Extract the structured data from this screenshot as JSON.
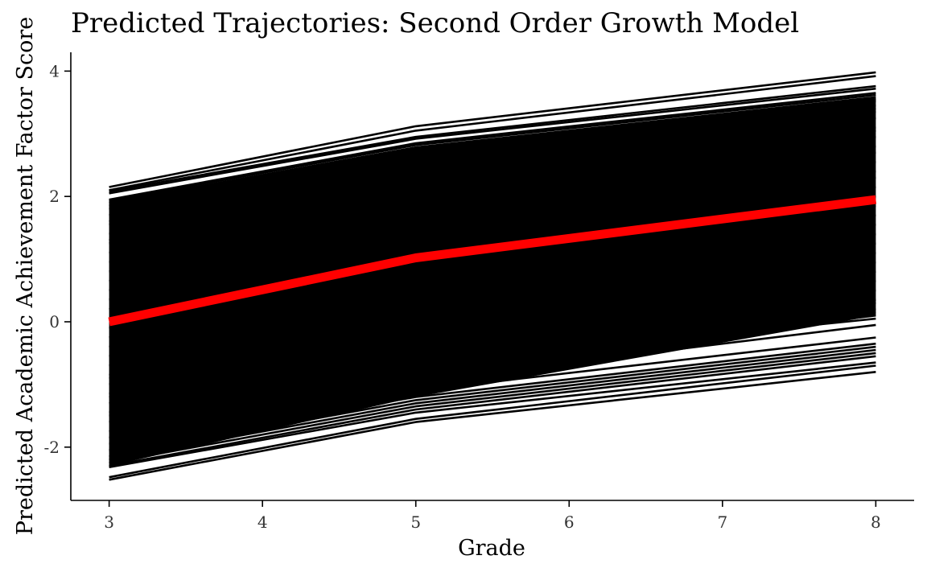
{
  "chart_data": {
    "type": "line",
    "title": "Predicted Trajectories: Second Order Growth Model",
    "xlabel": "Grade",
    "ylabel": "Predicted Academic Achievement Factor Score",
    "xlim": [
      2.75,
      8.25
    ],
    "ylim": [
      -2.85,
      4.3
    ],
    "x_ticks": [
      3,
      4,
      5,
      6,
      7,
      8
    ],
    "y_ticks": [
      -2,
      0,
      2,
      4
    ],
    "x_tick_labels": [
      "3",
      "4",
      "5",
      "6",
      "7",
      "8"
    ],
    "y_tick_labels": [
      "-2",
      "0",
      "2",
      "4"
    ],
    "x": [
      3,
      5,
      8
    ],
    "individual_trajectories_note_color": "#000000",
    "series": [
      {
        "values": [
          2.15,
          3.12,
          3.98
        ]
      },
      {
        "values": [
          2.1,
          3.05,
          3.92
        ]
      },
      {
        "values": [
          2.08,
          2.95,
          3.76
        ]
      },
      {
        "values": [
          2.05,
          2.92,
          3.72
        ]
      },
      {
        "values": [
          1.95,
          2.85,
          3.65
        ]
      },
      {
        "values": [
          1.93,
          2.82,
          3.62
        ]
      },
      {
        "values": [
          1.9,
          2.78,
          3.55
        ]
      },
      {
        "values": [
          1.85,
          2.75,
          3.52
        ]
      },
      {
        "values": [
          1.7,
          2.6,
          3.4
        ]
      },
      {
        "values": [
          1.55,
          2.45,
          3.25
        ]
      },
      {
        "values": [
          1.4,
          2.3,
          3.1
        ]
      },
      {
        "values": [
          1.25,
          2.15,
          2.95
        ]
      },
      {
        "values": [
          1.1,
          2.0,
          2.8
        ]
      },
      {
        "values": [
          0.95,
          1.85,
          2.7
        ]
      },
      {
        "values": [
          0.8,
          1.7,
          2.55
        ]
      },
      {
        "values": [
          0.65,
          1.55,
          2.4
        ]
      },
      {
        "values": [
          0.5,
          1.45,
          2.3
        ]
      },
      {
        "values": [
          0.35,
          1.3,
          2.15
        ]
      },
      {
        "values": [
          0.2,
          1.15,
          2.0
        ]
      },
      {
        "values": [
          0.05,
          1.0,
          1.85
        ]
      },
      {
        "values": [
          -0.1,
          0.85,
          1.7
        ]
      },
      {
        "values": [
          -0.25,
          0.7,
          1.55
        ]
      },
      {
        "values": [
          -0.4,
          0.55,
          1.4
        ]
      },
      {
        "values": [
          -0.55,
          0.4,
          1.25
        ]
      },
      {
        "values": [
          -0.7,
          0.25,
          1.1
        ]
      },
      {
        "values": [
          -0.85,
          0.1,
          0.95
        ]
      },
      {
        "values": [
          -1.0,
          -0.05,
          0.8
        ]
      },
      {
        "values": [
          -1.15,
          -0.2,
          0.65
        ]
      },
      {
        "values": [
          -1.3,
          -0.35,
          0.5
        ]
      },
      {
        "values": [
          -1.45,
          -0.5,
          0.35
        ]
      },
      {
        "values": [
          -1.6,
          -0.65,
          0.2
        ]
      },
      {
        "values": [
          -1.75,
          -0.8,
          0.1
        ]
      },
      {
        "values": [
          -1.85,
          -0.95,
          -0.05
        ]
      },
      {
        "values": [
          -1.95,
          -1.1,
          -0.25
        ]
      },
      {
        "values": [
          -2.05,
          -1.2,
          -0.35
        ]
      },
      {
        "values": [
          -2.15,
          -1.25,
          -0.4
        ]
      },
      {
        "values": [
          -2.2,
          -1.3,
          -0.45
        ]
      },
      {
        "values": [
          -2.25,
          -1.35,
          -0.5
        ]
      },
      {
        "values": [
          -2.3,
          -1.4,
          -0.55
        ]
      },
      {
        "values": [
          -2.32,
          -1.45,
          -0.65
        ]
      },
      {
        "values": [
          -2.48,
          -1.55,
          -0.7
        ]
      },
      {
        "values": [
          -2.52,
          -1.6,
          -0.8
        ]
      },
      {
        "values": [
          -1.5,
          -0.7,
          0.05
        ]
      },
      {
        "values": [
          -1.2,
          -0.45,
          0.15
        ]
      },
      {
        "values": [
          -0.9,
          -0.15,
          0.3
        ]
      },
      {
        "values": [
          1.8,
          2.7,
          3.45
        ]
      },
      {
        "values": [
          1.6,
          2.55,
          3.35
        ]
      },
      {
        "values": [
          1.3,
          2.25,
          3.05
        ]
      }
    ],
    "mean_series": {
      "color": "#ff0000",
      "values": [
        0.0,
        1.02,
        1.95
      ]
    },
    "fill_band": {
      "lower": [
        -2.3,
        -1.2,
        0.1
      ],
      "upper": [
        1.92,
        2.8,
        3.6
      ]
    }
  }
}
